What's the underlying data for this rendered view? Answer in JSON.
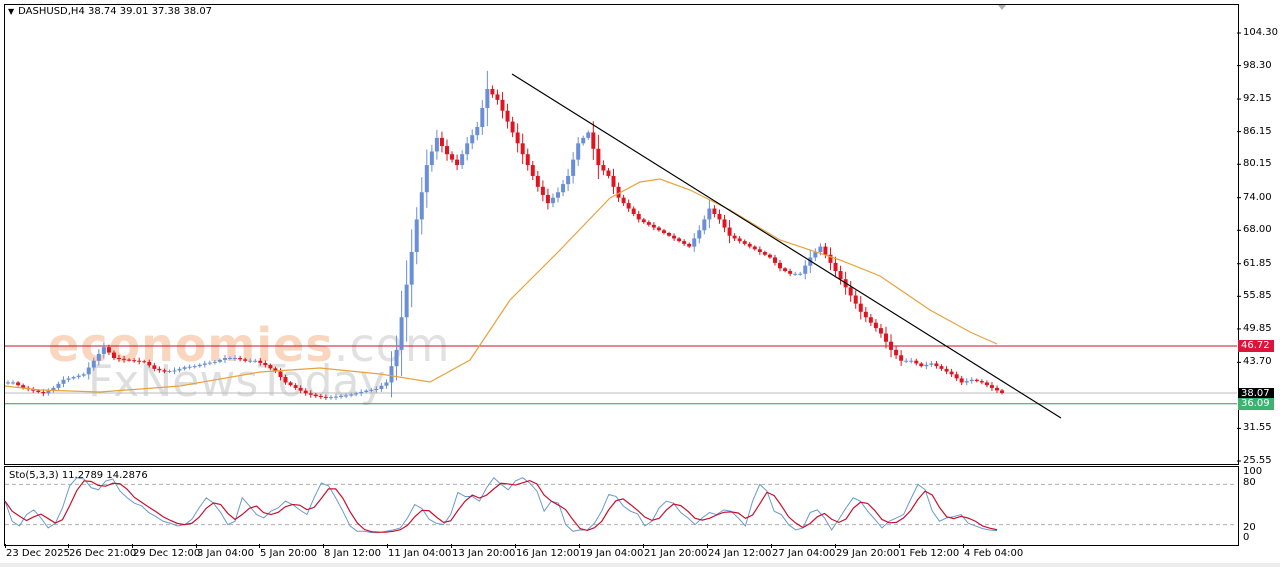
{
  "chart_data": {
    "type": "candlestick",
    "title": "DASHUSD,H4  38.74 39.01 37.38 38.07",
    "symbol": "DASHUSD",
    "timeframe": "H4",
    "ohlc_last": {
      "open": 38.74,
      "high": 39.01,
      "low": 37.38,
      "close": 38.07
    },
    "y_ticks": [
      "104.30",
      "98.30",
      "92.15",
      "86.15",
      "80.15",
      "74.00",
      "68.00",
      "61.85",
      "55.85",
      "49.85",
      "43.70",
      "37.55",
      "31.55",
      "25.55"
    ],
    "ylim": [
      25.55,
      104.3
    ],
    "x_ticks": [
      "23 Dec 2025",
      "26 Dec 21:00",
      "29 Dec 12:00",
      "3 Jan 04:00",
      "5 Jan 20:00",
      "8 Jan 12:00",
      "11 Jan 04:00",
      "13 Jan 20:00",
      "16 Jan 12:00",
      "19 Jan 04:00",
      "21 Jan 20:00",
      "24 Jan 12:00",
      "27 Jan 04:00",
      "29 Jan 20:00",
      "1 Feb 12:00",
      "4 Feb 04:00"
    ],
    "horizontal_lines": [
      {
        "label": "46.72",
        "value": 46.72,
        "color": "#c8102e"
      },
      {
        "label": "38.07",
        "value": 38.07,
        "color": "#000000"
      },
      {
        "label": "36.09",
        "value": 36.09,
        "color": "#2e9b5f"
      }
    ],
    "trendline": {
      "start": {
        "time": "15 Jan",
        "price": 96.9
      },
      "end": {
        "time": "6 Feb",
        "price": 33.0
      },
      "color": "#000000"
    },
    "moving_average": {
      "color": "#e8a23c",
      "peak_value": 78.0,
      "last_value": 47.5
    },
    "series": [
      {
        "name": "price_close_approx",
        "values": [
          40,
          39,
          38.5,
          38,
          39,
          40.5,
          41,
          41.5,
          44,
          46.5,
          44.5,
          44.2,
          44,
          43.8,
          42.5,
          42,
          42.2,
          42.8,
          43,
          43.5,
          43.8,
          44.5,
          44.5,
          44,
          44,
          43.2,
          42,
          40,
          39,
          38,
          37.5,
          37.2,
          37.4,
          37.6,
          38,
          38.5,
          38.8,
          40,
          46,
          58,
          70,
          80,
          85,
          82,
          80,
          84,
          87,
          94,
          92,
          88,
          84,
          80,
          76,
          73,
          75,
          78,
          84,
          86,
          80,
          78,
          74,
          72,
          70,
          69,
          68,
          67,
          66,
          65,
          68,
          72,
          70,
          67,
          66,
          65,
          64,
          63,
          61,
          60,
          60,
          63,
          65,
          62,
          59,
          56,
          53,
          51,
          49,
          46,
          44,
          44,
          43,
          43.5,
          42.5,
          41.5,
          40,
          40.5,
          40,
          39,
          38.07
        ]
      },
      {
        "name": "Sto %K",
        "values": []
      },
      {
        "name": "Sto %D",
        "values": []
      }
    ]
  },
  "header": {
    "title": "DASHUSD,H4  38.74 39.01 37.38 38.07"
  },
  "indicator": {
    "label": "Sto(5,3,3) 11.2789 14.2876",
    "name": "Sto(5,3,3)",
    "main_value": "11.2789",
    "signal_value": "14.2876",
    "levels": [
      "100",
      "80",
      "20",
      "0"
    ]
  },
  "price_tags": {
    "resistance": {
      "label": "46.72",
      "color": "#c8102e"
    },
    "current": {
      "label": "38.07",
      "color": "#000000"
    },
    "support": {
      "label": "36.09",
      "color": "#2e9b5f"
    }
  },
  "watermark": {
    "line1_main": "economies",
    "line1_suffix": ".com",
    "line2": "FxNewsToday"
  },
  "colors": {
    "bull": "#6a8fd8",
    "bear": "#e0141e",
    "ma": "#e8a23c",
    "sto_main": "#6a9ad0",
    "sto_signal": "#c8102e"
  }
}
